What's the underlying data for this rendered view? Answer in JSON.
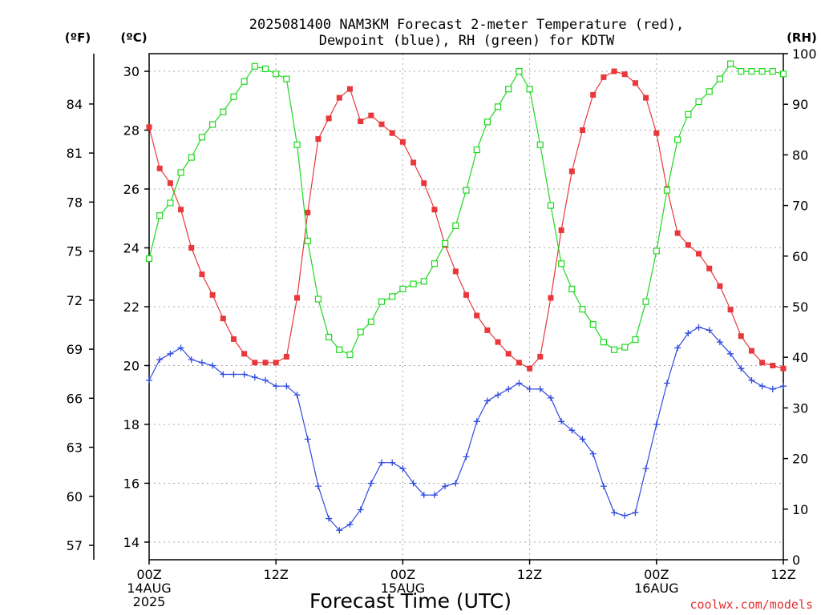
{
  "title": {
    "line1": "2025081400 NAM3KM Forecast 2-meter Temperature (red),",
    "line2": "Dewpoint (blue), RH (green) for KDTW"
  },
  "axis_units": {
    "left_f": "(ºF)",
    "left_c": "(ºC)",
    "right_rh": "(RH)"
  },
  "xlabel": "Forecast Time (UTC)",
  "credit": "coolwx.com/models",
  "x_ticks": [
    {
      "hour": 0,
      "lines": [
        "00Z",
        "14AUG",
        "2025"
      ]
    },
    {
      "hour": 12,
      "lines": [
        "12Z"
      ]
    },
    {
      "hour": 24,
      "lines": [
        "00Z",
        "15AUG"
      ]
    },
    {
      "hour": 36,
      "lines": [
        "12Z"
      ]
    },
    {
      "hour": 48,
      "lines": [
        "00Z",
        "16AUG"
      ]
    },
    {
      "hour": 60,
      "lines": [
        "12Z"
      ]
    }
  ],
  "celsius_ticks": [
    "14",
    "16",
    "18",
    "20",
    "22",
    "24",
    "26",
    "28",
    "30"
  ],
  "fahrenheit_ticks": [
    "57",
    "60",
    "63",
    "66",
    "69",
    "72",
    "75",
    "78",
    "81",
    "84"
  ],
  "rh_ticks": [
    "0",
    "10",
    "20",
    "30",
    "40",
    "50",
    "60",
    "70",
    "80",
    "90",
    "100"
  ],
  "chart_data": {
    "type": "line",
    "title": "2025081400 NAM3KM Forecast 2-meter Temperature (red), Dewpoint (blue), RH (green) for KDTW",
    "xlabel": "Forecast Time (UTC)",
    "ylabel_left": "(ºC)",
    "ylabel_left_outer": "(ºF)",
    "ylabel_right": "(RH)",
    "x_unit": "forecast hour from 2025-08-14 00Z",
    "xlim": [
      0,
      60
    ],
    "ylim_celsius": [
      13.4,
      30.6
    ],
    "ylim_rh": [
      0,
      100
    ],
    "grid": true,
    "colors": {
      "temperature": "#e8383b",
      "dewpoint": "#2f4ae0",
      "rh": "#1ed81e"
    },
    "x": [
      0,
      1,
      2,
      3,
      4,
      5,
      6,
      7,
      8,
      9,
      10,
      11,
      12,
      13,
      14,
      15,
      16,
      17,
      18,
      19,
      20,
      21,
      22,
      23,
      24,
      25,
      26,
      27,
      28,
      29,
      30,
      31,
      32,
      33,
      34,
      35,
      36,
      37,
      38,
      39,
      40,
      41,
      42,
      43,
      44,
      45,
      46,
      47,
      48,
      49,
      50,
      51,
      52,
      53,
      54,
      55,
      56,
      57,
      58,
      59,
      60
    ],
    "series": [
      {
        "name": "Temperature (red)",
        "axis": "celsius",
        "marker": "filled-square",
        "values": [
          28.1,
          26.7,
          26.2,
          25.3,
          24.0,
          23.1,
          22.4,
          21.6,
          20.9,
          20.4,
          20.1,
          20.1,
          20.1,
          20.3,
          22.3,
          25.2,
          27.7,
          28.4,
          29.1,
          29.4,
          28.3,
          28.5,
          28.2,
          27.9,
          27.6,
          26.9,
          26.2,
          25.3,
          24.1,
          23.2,
          22.4,
          21.7,
          21.2,
          20.8,
          20.4,
          20.1,
          19.9,
          20.3,
          22.3,
          24.6,
          26.6,
          28.0,
          29.2,
          29.8,
          30.0,
          29.9,
          29.6,
          29.1,
          27.9,
          26.0,
          24.5,
          24.1,
          23.8,
          23.3,
          22.7,
          21.9,
          21.0,
          20.5,
          20.1,
          20.0,
          19.9
        ]
      },
      {
        "name": "Dewpoint (blue)",
        "axis": "celsius",
        "marker": "plus",
        "values": [
          19.5,
          20.2,
          20.4,
          20.6,
          20.2,
          20.1,
          20.0,
          19.7,
          19.7,
          19.7,
          19.6,
          19.5,
          19.3,
          19.3,
          19.0,
          17.5,
          15.9,
          14.8,
          14.4,
          14.6,
          15.1,
          16.0,
          16.7,
          16.7,
          16.5,
          16.0,
          15.6,
          15.6,
          15.9,
          16.0,
          16.9,
          18.1,
          18.8,
          19.0,
          19.2,
          19.4,
          19.2,
          19.2,
          18.9,
          18.1,
          17.8,
          17.5,
          17.0,
          15.9,
          15.0,
          14.9,
          15.0,
          16.5,
          18.0,
          19.4,
          20.6,
          21.1,
          21.3,
          21.2,
          20.8,
          20.4,
          19.9,
          19.5,
          19.3,
          19.2,
          19.3
        ]
      },
      {
        "name": "RH (green)",
        "axis": "rh",
        "marker": "open-square",
        "values": [
          59.5,
          68.0,
          70.5,
          76.5,
          79.5,
          83.5,
          86.0,
          88.5,
          91.5,
          94.5,
          97.5,
          97.0,
          96.0,
          95.0,
          82.0,
          63.0,
          51.5,
          44.0,
          41.5,
          40.5,
          45.0,
          47.0,
          51.0,
          52.0,
          53.5,
          54.5,
          55.0,
          58.5,
          62.5,
          66.0,
          73.0,
          81.0,
          86.5,
          89.5,
          93.0,
          96.5,
          93.0,
          82.0,
          70.0,
          58.5,
          53.5,
          49.5,
          46.5,
          43.0,
          41.5,
          42.0,
          43.5,
          51.0,
          61.0,
          73.0,
          83.0,
          88.0,
          90.5,
          92.5,
          95.0,
          98.0,
          96.5,
          96.5,
          96.5,
          96.5,
          96.0
        ]
      }
    ]
  }
}
